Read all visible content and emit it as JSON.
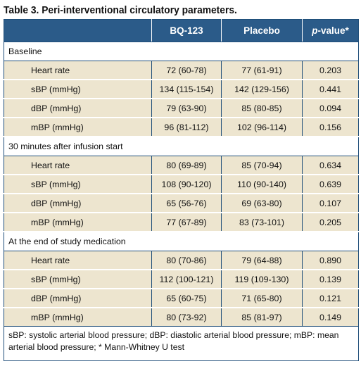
{
  "title": "Table 3. Peri-interventional circulatory parameters.",
  "columns": {
    "group1": "BQ-123",
    "group2": "Placebo",
    "p_italic": "p",
    "p_rest": "-value*"
  },
  "sections": [
    {
      "heading": "Baseline",
      "rows": [
        {
          "label": "Heart rate",
          "bq123": "72 (60-78)",
          "placebo": "77 (61-91)",
          "p": "0.203"
        },
        {
          "label": "sBP (mmHg)",
          "bq123": "134 (115-154)",
          "placebo": "142 (129-156)",
          "p": "0.441"
        },
        {
          "label": "dBP (mmHg)",
          "bq123": "79 (63-90)",
          "placebo": "85 (80-85)",
          "p": "0.094"
        },
        {
          "label": "mBP (mmHg)",
          "bq123": "96 (81-112)",
          "placebo": "102 (96-114)",
          "p": "0.156"
        }
      ]
    },
    {
      "heading": "30 minutes after infusion start",
      "rows": [
        {
          "label": "Heart rate",
          "bq123": "80 (69-89)",
          "placebo": "85 (70-94)",
          "p": "0.634"
        },
        {
          "label": "sBP (mmHg)",
          "bq123": "108 (90-120)",
          "placebo": "110 (90-140)",
          "p": "0.639"
        },
        {
          "label": "dBP (mmHg)",
          "bq123": "65 (56-76)",
          "placebo": "69 (63-80)",
          "p": "0.107"
        },
        {
          "label": "mBP (mmHg)",
          "bq123": "77 (67-89)",
          "placebo": "83 (73-101)",
          "p": "0.205"
        }
      ]
    },
    {
      "heading": "At the end of study medication",
      "rows": [
        {
          "label": "Heart rate",
          "bq123": "80 (70-86)",
          "placebo": "79 (64-88)",
          "p": "0.890"
        },
        {
          "label": "sBP (mmHg)",
          "bq123": "112 (100-121)",
          "placebo": "119 (109-130)",
          "p": "0.139"
        },
        {
          "label": "dBP (mmHg)",
          "bq123": "65 (60-75)",
          "placebo": "71 (65-80)",
          "p": "0.121"
        },
        {
          "label": "mBP (mmHg)",
          "bq123": "80 (73-92)",
          "placebo": "85 (81-97)",
          "p": "0.149"
        }
      ]
    }
  ],
  "footnote": "sBP: systolic arterial blood pressure; dBP: diastolic arterial blood pressure; mBP: mean arterial blood pressure; * Mann-Whitney U test",
  "colors": {
    "header_bg": "#2b5b89",
    "row_bg": "#ede5cf",
    "border": "#1f4e79"
  }
}
